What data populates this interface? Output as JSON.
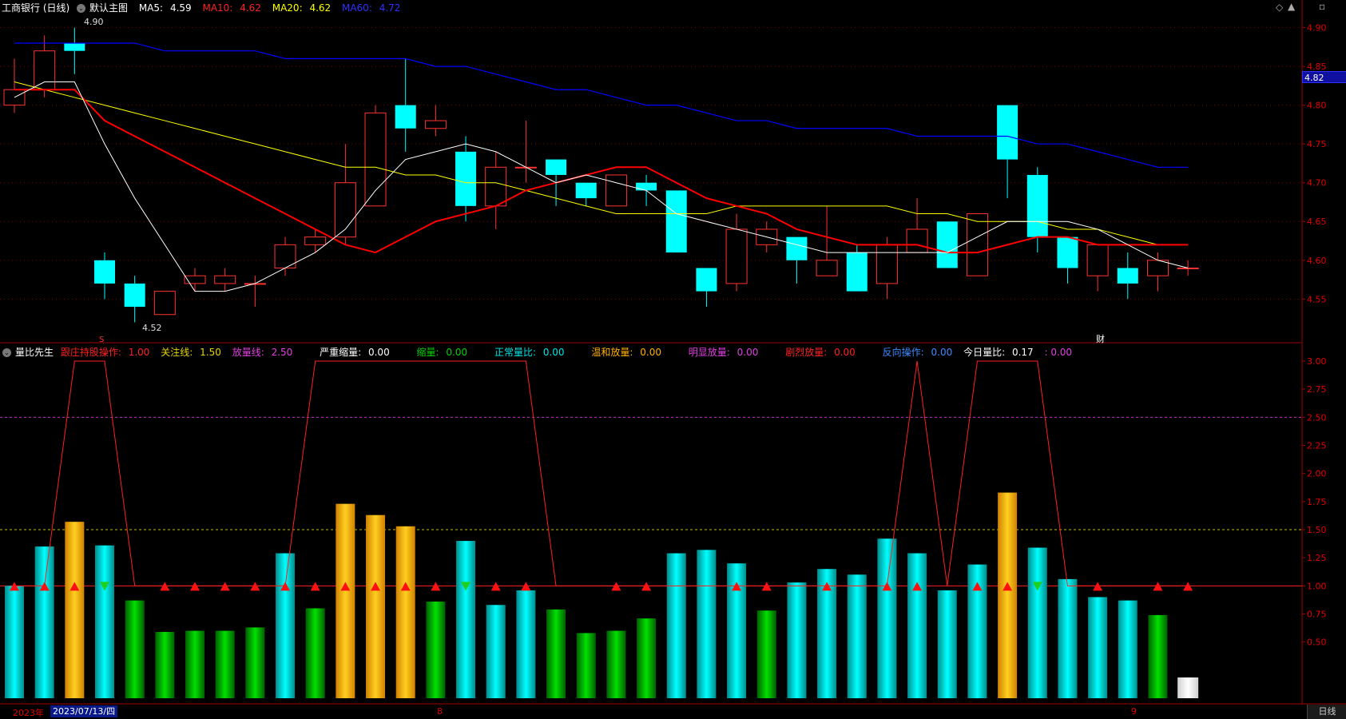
{
  "top_header": {
    "stock": "工商银行 (日线)",
    "template": "默认主图",
    "ma5_label": "MA5:",
    "ma5_value": "4.59",
    "ma10_label": "MA10:",
    "ma10_value": "4.62",
    "ma20_label": "MA20:",
    "ma20_value": "4.62",
    "ma60_label": "MA60:",
    "ma60_value": "4.72"
  },
  "colors": {
    "up": "#ff3232",
    "down": "#00ffff",
    "ma5": "#ffffff",
    "ma10": "#ff0000",
    "ma20": "#ffff00",
    "ma60": "#0000ff",
    "grid": "#7a0000"
  },
  "current_price": "4.82",
  "high_label": "4.90",
  "low_label": "4.52",
  "event_marks": {
    "s_mark": "S",
    "cai_mark": "财"
  },
  "ind_header": {
    "name": "量比先生",
    "i1_label": "跟庄持股操作:",
    "i1_value": "1.00",
    "i2_label": "关注线:",
    "i2_value": "1.50",
    "i3_label": "放量线:",
    "i3_value": "2.50",
    "i4_label": "严重缩量:",
    "i4_value": "0.00",
    "i5_label": "缩量:",
    "i5_value": "0.00",
    "i6_label": "正常量比:",
    "i6_value": "0.00",
    "i7_label": "温和放量:",
    "i7_value": "0.00",
    "i8_label": "明显放量:",
    "i8_value": "0.00",
    "i9_label": "剧烈放量:",
    "i9_value": "0.00",
    "i10_label": "反向操作:",
    "i10_value": "0.00",
    "i11_label": "今日量比:",
    "i11_value": "0.17",
    "i12_value": ": 0.00"
  },
  "bottom": {
    "year": "2023年",
    "date": "2023/07/13/四",
    "month8": "8",
    "month9": "9",
    "period": "日线"
  },
  "chart_data": [
    {
      "type": "candlestick",
      "price_ticks": [
        "4.90",
        "4.85",
        "4.80",
        "4.75",
        "4.70",
        "4.65",
        "4.60",
        "4.55"
      ],
      "ylim": [
        4.505,
        4.915
      ],
      "candles": [
        {
          "o": 4.8,
          "h": 4.86,
          "l": 4.79,
          "c": 4.82
        },
        {
          "o": 4.82,
          "h": 4.89,
          "l": 4.81,
          "c": 4.87
        },
        {
          "o": 4.88,
          "h": 4.9,
          "l": 4.84,
          "c": 4.87
        },
        {
          "o": 4.6,
          "h": 4.61,
          "l": 4.55,
          "c": 4.57
        },
        {
          "o": 4.57,
          "h": 4.58,
          "l": 4.52,
          "c": 4.54
        },
        {
          "o": 4.53,
          "h": 4.56,
          "l": 4.53,
          "c": 4.56
        },
        {
          "o": 4.57,
          "h": 4.59,
          "l": 4.56,
          "c": 4.58
        },
        {
          "o": 4.57,
          "h": 4.59,
          "l": 4.56,
          "c": 4.58
        },
        {
          "o": 4.57,
          "h": 4.58,
          "l": 4.54,
          "c": 4.57
        },
        {
          "o": 4.59,
          "h": 4.63,
          "l": 4.58,
          "c": 4.62
        },
        {
          "o": 4.62,
          "h": 4.64,
          "l": 4.61,
          "c": 4.63
        },
        {
          "o": 4.63,
          "h": 4.75,
          "l": 4.62,
          "c": 4.7
        },
        {
          "o": 4.67,
          "h": 4.8,
          "l": 4.67,
          "c": 4.79
        },
        {
          "o": 4.8,
          "h": 4.86,
          "l": 4.74,
          "c": 4.77
        },
        {
          "o": 4.77,
          "h": 4.8,
          "l": 4.76,
          "c": 4.78
        },
        {
          "o": 4.74,
          "h": 4.76,
          "l": 4.65,
          "c": 4.67
        },
        {
          "o": 4.67,
          "h": 4.74,
          "l": 4.64,
          "c": 4.72
        },
        {
          "o": 4.72,
          "h": 4.78,
          "l": 4.7,
          "c": 4.72
        },
        {
          "o": 4.73,
          "h": 4.73,
          "l": 4.67,
          "c": 4.71
        },
        {
          "o": 4.7,
          "h": 4.7,
          "l": 4.67,
          "c": 4.68
        },
        {
          "o": 4.67,
          "h": 4.71,
          "l": 4.67,
          "c": 4.71
        },
        {
          "o": 4.7,
          "h": 4.71,
          "l": 4.67,
          "c": 4.69
        },
        {
          "o": 4.69,
          "h": 4.69,
          "l": 4.61,
          "c": 4.61
        },
        {
          "o": 4.59,
          "h": 4.59,
          "l": 4.54,
          "c": 4.56
        },
        {
          "o": 4.57,
          "h": 4.66,
          "l": 4.56,
          "c": 4.64
        },
        {
          "o": 4.62,
          "h": 4.65,
          "l": 4.61,
          "c": 4.64
        },
        {
          "o": 4.63,
          "h": 4.63,
          "l": 4.57,
          "c": 4.6
        },
        {
          "o": 4.58,
          "h": 4.67,
          "l": 4.58,
          "c": 4.6
        },
        {
          "o": 4.61,
          "h": 4.62,
          "l": 4.56,
          "c": 4.56
        },
        {
          "o": 4.57,
          "h": 4.63,
          "l": 4.55,
          "c": 4.62
        },
        {
          "o": 4.61,
          "h": 4.68,
          "l": 4.61,
          "c": 4.64
        },
        {
          "o": 4.65,
          "h": 4.65,
          "l": 4.59,
          "c": 4.59
        },
        {
          "o": 4.58,
          "h": 4.66,
          "l": 4.58,
          "c": 4.66
        },
        {
          "o": 4.8,
          "h": 4.8,
          "l": 4.68,
          "c": 4.73
        },
        {
          "o": 4.71,
          "h": 4.72,
          "l": 4.61,
          "c": 4.63
        },
        {
          "o": 4.63,
          "h": 4.63,
          "l": 4.57,
          "c": 4.59
        },
        {
          "o": 4.58,
          "h": 4.62,
          "l": 4.56,
          "c": 4.62
        },
        {
          "o": 4.59,
          "h": 4.61,
          "l": 4.55,
          "c": 4.57
        },
        {
          "o": 4.58,
          "h": 4.61,
          "l": 4.56,
          "c": 4.6
        },
        {
          "o": 4.59,
          "h": 4.6,
          "l": 4.58,
          "c": 4.59
        }
      ],
      "ma5": [
        4.81,
        4.83,
        4.83,
        4.75,
        4.68,
        4.62,
        4.56,
        4.56,
        4.57,
        4.59,
        4.61,
        4.64,
        4.69,
        4.73,
        4.74,
        4.75,
        4.74,
        4.72,
        4.7,
        4.71,
        4.7,
        4.69,
        4.66,
        4.65,
        4.64,
        4.63,
        4.62,
        4.61,
        4.61,
        4.61,
        4.61,
        4.61,
        4.63,
        4.65,
        4.65,
        4.65,
        4.64,
        4.62,
        4.6,
        4.59
      ],
      "ma10": [
        4.82,
        4.82,
        4.82,
        4.78,
        4.76,
        4.74,
        4.72,
        4.7,
        4.68,
        4.66,
        4.64,
        4.62,
        4.61,
        4.63,
        4.65,
        4.66,
        4.67,
        4.69,
        4.7,
        4.71,
        4.72,
        4.72,
        4.7,
        4.68,
        4.67,
        4.66,
        4.64,
        4.63,
        4.62,
        4.62,
        4.62,
        4.61,
        4.61,
        4.62,
        4.63,
        4.63,
        4.62,
        4.62,
        4.62,
        4.62
      ],
      "ma20": [
        4.83,
        4.82,
        4.81,
        4.8,
        4.79,
        4.78,
        4.77,
        4.76,
        4.75,
        4.74,
        4.73,
        4.72,
        4.72,
        4.71,
        4.71,
        4.7,
        4.7,
        4.69,
        4.68,
        4.67,
        4.66,
        4.66,
        4.66,
        4.66,
        4.67,
        4.67,
        4.67,
        4.67,
        4.67,
        4.67,
        4.66,
        4.66,
        4.65,
        4.65,
        4.65,
        4.64,
        4.64,
        4.63,
        4.62,
        4.62
      ],
      "ma60": [
        4.88,
        4.88,
        4.88,
        4.88,
        4.88,
        4.87,
        4.87,
        4.87,
        4.87,
        4.86,
        4.86,
        4.86,
        4.86,
        4.86,
        4.85,
        4.85,
        4.84,
        4.83,
        4.82,
        4.82,
        4.81,
        4.8,
        4.8,
        4.79,
        4.78,
        4.78,
        4.77,
        4.77,
        4.77,
        4.77,
        4.76,
        4.76,
        4.76,
        4.76,
        4.75,
        4.75,
        4.74,
        4.73,
        4.72,
        4.72
      ]
    },
    {
      "type": "bar",
      "ratio_ticks": [
        "3.00",
        "2.75",
        "2.50",
        "2.25",
        "2.00",
        "1.75",
        "1.50",
        "1.25",
        "1.00",
        "0.75",
        "0.50"
      ],
      "ylim": [
        0.0,
        3.0
      ],
      "reference_lines": [
        2.5,
        1.5,
        1.0
      ],
      "volume_ratio": [
        1.0,
        1.35,
        1.57,
        1.36,
        0.87,
        0.59,
        0.6,
        0.6,
        0.63,
        1.29,
        0.8,
        1.73,
        1.63,
        1.53,
        0.86,
        1.4,
        0.83,
        0.96,
        0.79,
        0.58,
        0.6,
        0.71,
        1.29,
        1.32,
        1.2,
        0.78,
        1.03,
        1.15,
        1.1,
        1.42,
        1.29,
        0.96,
        1.19,
        1.83,
        1.34,
        1.06,
        0.9,
        0.87,
        0.74,
        0.17
      ],
      "bar_colors": [
        "c",
        "c",
        "y",
        "c",
        "g",
        "g",
        "g",
        "g",
        "g",
        "c",
        "g",
        "y",
        "y",
        "y",
        "g",
        "c",
        "c",
        "c",
        "g",
        "g",
        "g",
        "g",
        "c",
        "c",
        "c",
        "g",
        "c",
        "c",
        "c",
        "c",
        "c",
        "c",
        "c",
        "y",
        "c",
        "c",
        "c",
        "c",
        "g",
        "w"
      ],
      "operation_line": [
        1.0,
        1.0,
        3.0,
        3.0,
        1.0,
        1.0,
        1.0,
        1.0,
        1.0,
        1.0,
        3.0,
        3.0,
        3.0,
        3.0,
        3.0,
        3.0,
        3.0,
        3.0,
        1.0,
        1.0,
        1.0,
        1.0,
        1.0,
        1.0,
        1.0,
        1.0,
        1.0,
        1.0,
        1.0,
        1.0,
        3.0,
        1.0,
        3.0,
        3.0,
        3.0,
        1.0,
        1.0,
        1.0,
        1.0,
        1.0
      ],
      "arrows": [
        "u",
        "u",
        "u",
        "d",
        "n",
        "u",
        "u",
        "u",
        "u",
        "u",
        "u",
        "u",
        "u",
        "u",
        "u",
        "d",
        "u",
        "u",
        "n",
        "n",
        "u",
        "u",
        "n",
        "n",
        "u",
        "u",
        "n",
        "u",
        "n",
        "u",
        "u",
        "n",
        "u",
        "u",
        "d",
        "n",
        "u",
        "n",
        "u",
        "u"
      ]
    }
  ]
}
